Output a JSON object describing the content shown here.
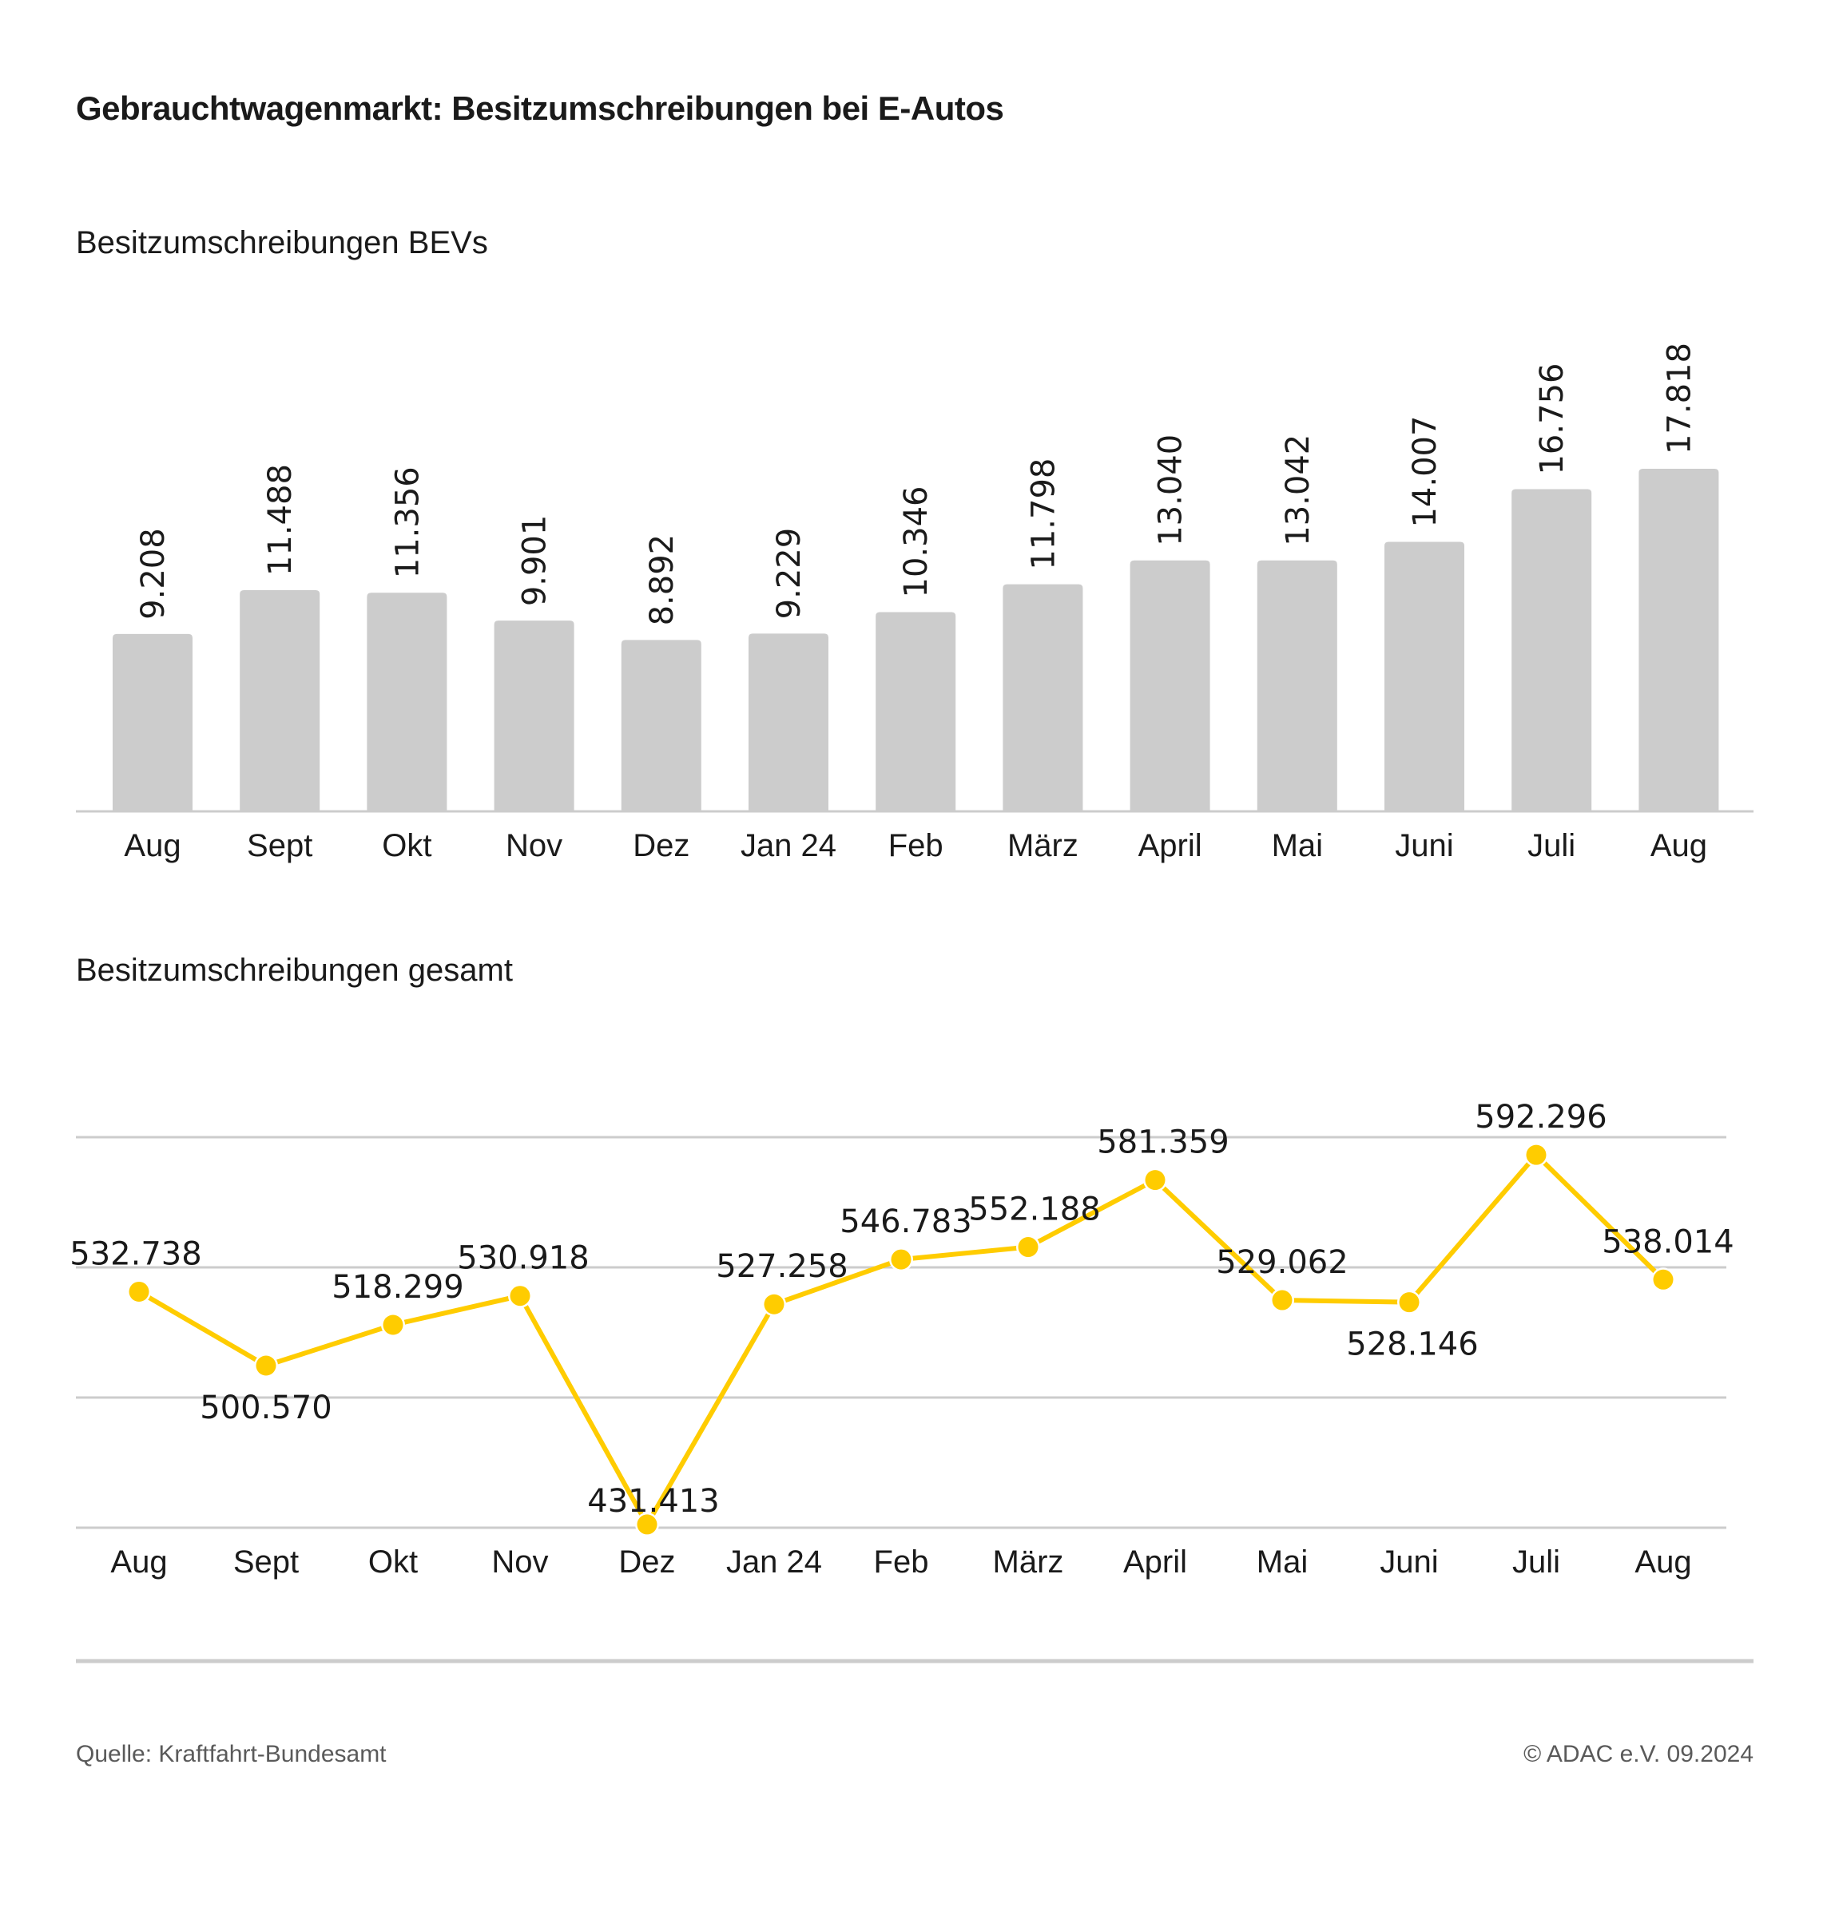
{
  "title": "Gebrauchtwagenmarkt: Besitzumschreibungen bei E-Autos",
  "footer": {
    "source": "Quelle: Kraftfahrt-Bundesamt",
    "copyright": "© ADAC e.V. 09.2024"
  },
  "colors": {
    "bar": "#cccccc",
    "line": "#ffcc00",
    "grid": "#cccccc",
    "text": "#1a1a1a"
  },
  "chart_data": [
    {
      "type": "bar",
      "title": "Besitzumschreibungen BEVs",
      "categories": [
        "Aug",
        "Sept",
        "Okt",
        "Nov",
        "Dez",
        "Jan 24",
        "Feb",
        "März",
        "April",
        "Mai",
        "Juni",
        "Juli",
        "Aug"
      ],
      "values": [
        9208,
        11488,
        11356,
        9901,
        8892,
        9229,
        10346,
        11798,
        13040,
        13042,
        14007,
        16756,
        17818
      ],
      "value_labels": [
        "9.208",
        "11.488",
        "11.356",
        "9.901",
        "8.892",
        "9.229",
        "10.346",
        "11.798",
        "13.040",
        "13.042",
        "14.007",
        "16.756",
        "17.818"
      ],
      "xlabel": "",
      "ylabel": "",
      "ylim": [
        0,
        17818
      ],
      "grid": false,
      "legend": "none"
    },
    {
      "type": "line",
      "title": "Besitzumschreibungen gesamt",
      "categories": [
        "Aug",
        "Sept",
        "Okt",
        "Nov",
        "Dez",
        "Jan 24",
        "Feb",
        "März",
        "April",
        "Mai",
        "Juni",
        "Juli",
        "Aug"
      ],
      "values": [
        532738,
        500570,
        518299,
        530918,
        431413,
        527258,
        546783,
        552188,
        581359,
        529062,
        528146,
        592296,
        538014
      ],
      "value_labels": [
        "532.738",
        "500.570",
        "518.299",
        "530.918",
        "431.413",
        "527.258",
        "546.783",
        "552.188",
        "581.359",
        "529.062",
        "528.146",
        "592.296",
        "538.014"
      ],
      "label_positions": [
        "above",
        "below",
        "above",
        "above",
        "above",
        "above",
        "above",
        "above",
        "above",
        "above",
        "below",
        "above",
        "above"
      ],
      "xlabel": "",
      "ylabel": "",
      "ylim": [
        430000,
        600000
      ],
      "gridlines": 4,
      "grid": true,
      "legend": "none"
    }
  ]
}
